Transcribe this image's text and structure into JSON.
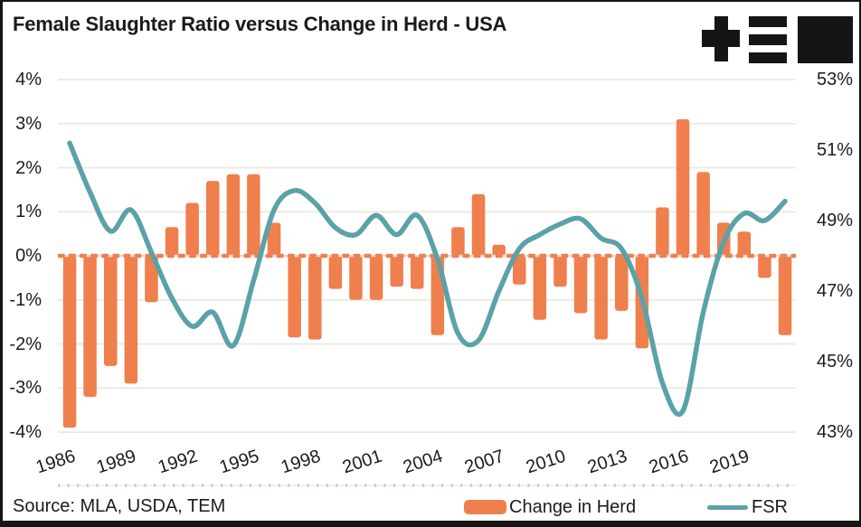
{
  "header": {
    "title": "Female Slaughter Ratio versus Change in Herd - USA",
    "logo_name": "TEM"
  },
  "chart_data": {
    "type": "combo_bar_line",
    "title": "Female Slaughter Ratio versus Change in Herd - USA",
    "categories": [
      1986,
      1987,
      1988,
      1989,
      1990,
      1991,
      1992,
      1993,
      1994,
      1995,
      1996,
      1997,
      1998,
      1999,
      2000,
      2001,
      2002,
      2003,
      2004,
      2005,
      2006,
      2007,
      2008,
      2009,
      2010,
      2011,
      2012,
      2013,
      2014,
      2015,
      2016,
      2017,
      2018,
      2019,
      2020,
      2021
    ],
    "series": [
      {
        "name": "Change in Herd",
        "type": "bar",
        "axis": "left",
        "unit": "%",
        "color": "#ef7f4d",
        "values": [
          -3.9,
          -3.2,
          -2.5,
          -2.9,
          -1.05,
          0.65,
          1.2,
          1.7,
          1.85,
          1.85,
          0.75,
          -1.85,
          -1.9,
          -0.75,
          -1.0,
          -1.0,
          -0.7,
          -0.75,
          -1.8,
          0.65,
          1.4,
          0.25,
          -0.65,
          -1.45,
          -0.7,
          -1.3,
          -1.9,
          -1.25,
          -2.1,
          1.1,
          3.1,
          1.9,
          0.75,
          0.55,
          -0.5,
          -1.8
        ]
      },
      {
        "name": "FSR",
        "type": "line",
        "axis": "right",
        "unit": "%",
        "color": "#5aa2a8",
        "values": [
          51.2,
          49.8,
          48.7,
          49.3,
          48.1,
          46.8,
          46.0,
          46.4,
          45.45,
          47.3,
          49.3,
          49.85,
          49.5,
          48.8,
          48.6,
          49.15,
          48.6,
          49.15,
          47.9,
          45.8,
          45.6,
          47.0,
          48.2,
          48.6,
          48.9,
          49.05,
          48.5,
          48.2,
          46.8,
          44.4,
          43.6,
          46.4,
          48.4,
          49.2,
          49.0,
          49.55
        ]
      }
    ],
    "left_axis": {
      "min": -4,
      "max": 4,
      "tick_labels": [
        "4%",
        "3%",
        "2%",
        "1%",
        "0%",
        "-1%",
        "-2%",
        "-3%",
        "-4%"
      ],
      "tick_values": [
        4,
        3,
        2,
        1,
        0,
        -1,
        -2,
        -3,
        -4
      ]
    },
    "right_axis": {
      "min": 43,
      "max": 53,
      "tick_labels": [
        "53%",
        "51%",
        "49%",
        "47%",
        "45%",
        "43%"
      ],
      "tick_values": [
        53,
        51,
        49,
        47,
        45,
        43
      ]
    },
    "x_axis": {
      "tick_labels": [
        "1986",
        "1989",
        "1992",
        "1995",
        "1998",
        "2001",
        "2004",
        "2007",
        "2010",
        "2013",
        "2016",
        "2019"
      ],
      "label_rotation_deg": -18
    },
    "grid": "horizontal",
    "zero_line": {
      "style": "dashed",
      "color": "#ef7f4d"
    },
    "legend_position": "bottom"
  },
  "footer": {
    "source": "Source: MLA, USDA, TEM",
    "legend_bar": "Change in Herd",
    "legend_line": "FSR"
  },
  "colors": {
    "bar": "#ef7f4d",
    "line": "#5aa2a8",
    "grid": "#ece9dd",
    "zero_gray": "#d9d9d9",
    "text": "#1c1c1c",
    "logo": "#151515",
    "background": "#ffffff"
  }
}
